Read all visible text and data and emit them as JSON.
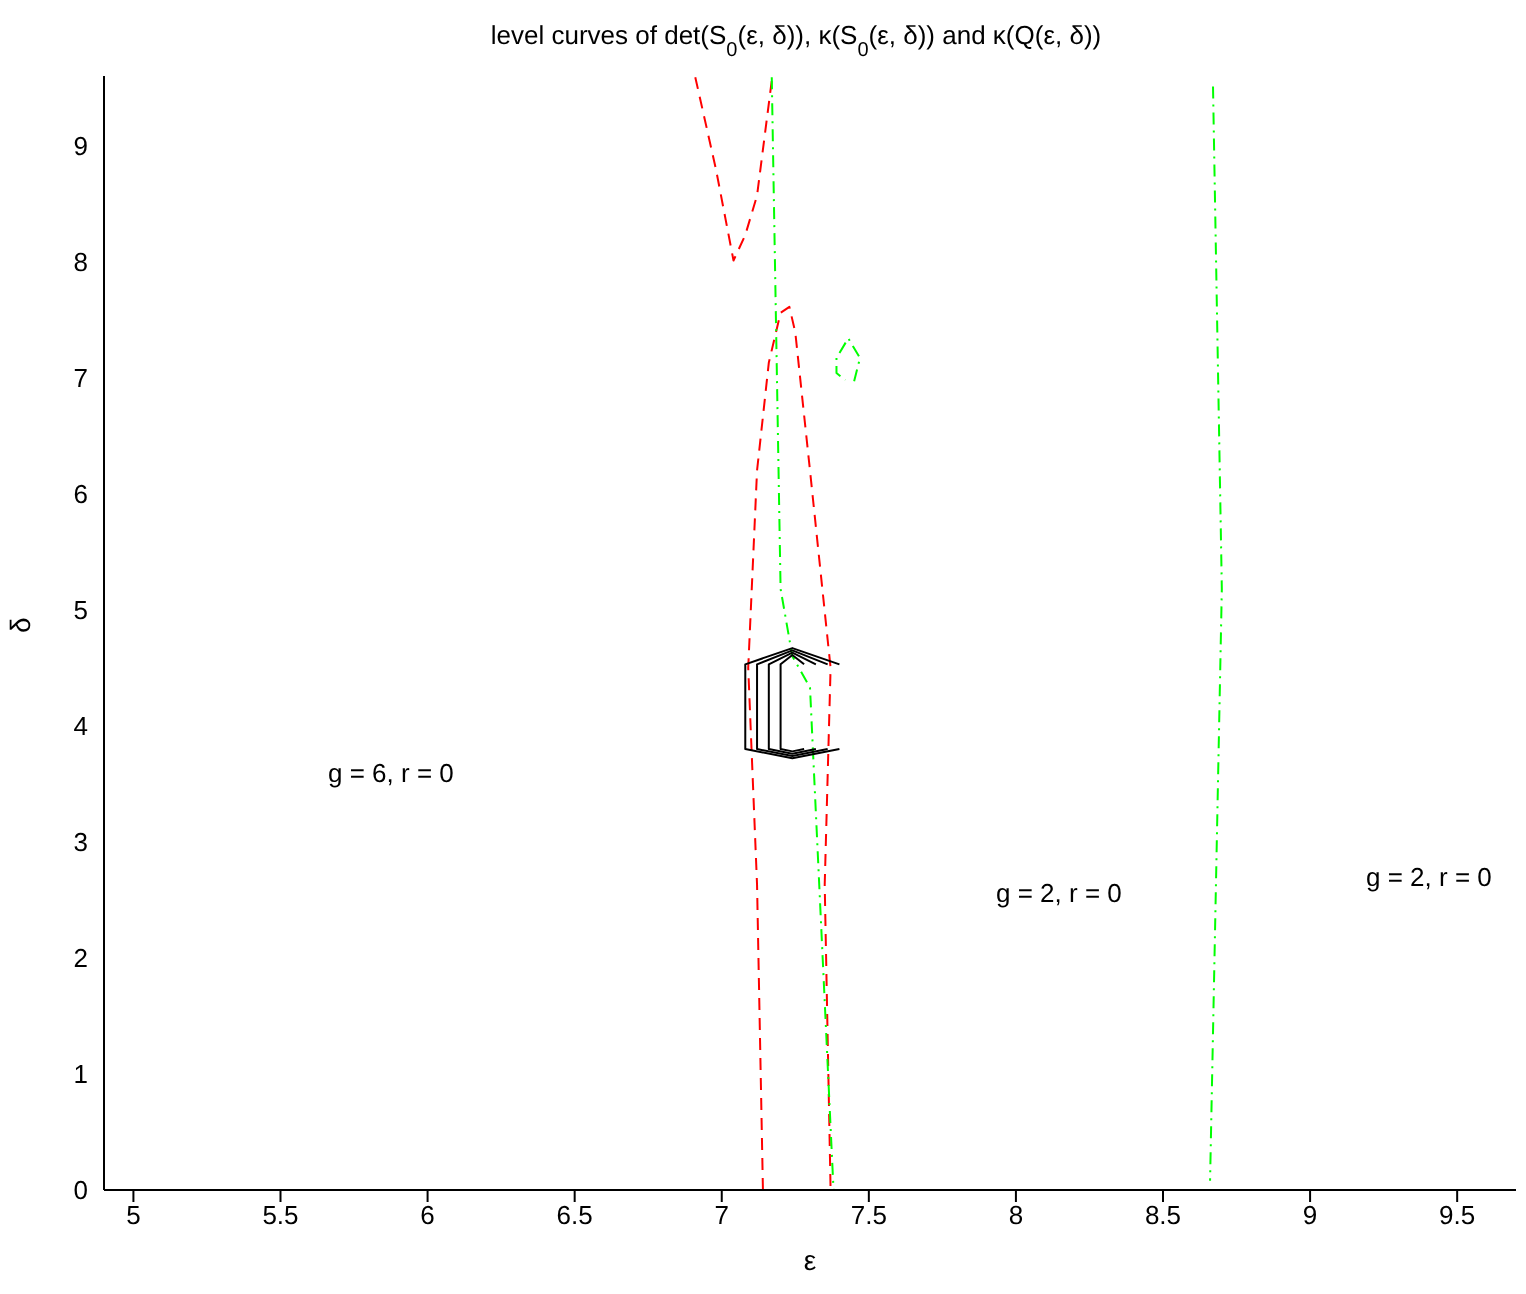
{
  "chart_data": {
    "type": "line",
    "title": "level curves of det(S$_{0}$(ε, δ)), κ(S$_{0}$(ε, δ))  and κ(Q(ε, δ))",
    "xlabel": "ε",
    "ylabel": "δ",
    "xlim": [
      4.9,
      9.7
    ],
    "ylim": [
      0,
      9.6
    ],
    "xticks": [
      5,
      5.5,
      6,
      6.5,
      7,
      7.5,
      8,
      8.5,
      9,
      9.5
    ],
    "yticks": [
      0,
      1,
      2,
      3,
      4,
      5,
      6,
      7,
      8,
      9
    ],
    "grid": false,
    "legend": false,
    "marker": "none",
    "series": [
      {
        "color": "#ff0000",
        "line_style": "dashed",
        "x": [
          6.91,
          6.98,
          7.04,
          7.08,
          7.12,
          7.17
        ],
        "values": [
          9.59,
          8.8,
          8.01,
          8.23,
          8.57,
          9.56
        ]
      },
      {
        "color": "#ff0000",
        "line_style": "dashed",
        "x": [
          7.14,
          7.12,
          7.09,
          7.12,
          7.16,
          7.2,
          7.23,
          7.25,
          7.3,
          7.37,
          7.35,
          7.37
        ],
        "values": [
          0,
          2.63,
          4.5,
          6.2,
          7.13,
          7.56,
          7.61,
          7.39,
          6.2,
          4.5,
          2.63,
          0
        ]
      },
      {
        "color": "#00ff00",
        "line_style": "dashdot",
        "x": [
          7.17,
          7.2,
          7.24,
          7.3,
          7.38
        ],
        "values": [
          9.59,
          5.18,
          4.6,
          4.33,
          0
        ]
      },
      {
        "color": "#00ff00",
        "line_style": "dashdot",
        "x": [
          8.67,
          8.7,
          8.66
        ],
        "values": [
          9.51,
          5.18,
          0.08
        ]
      },
      {
        "color": "#00ff00",
        "line_style": "dashdot",
        "x": [
          7.45,
          7.47,
          7.43,
          7.39,
          7.39,
          7.42
        ],
        "values": [
          6.97,
          7.17,
          7.34,
          7.17,
          7.04,
          6.98
        ]
      },
      {
        "color": "#000000",
        "line_style": "solid",
        "x": [
          7.4,
          7.24,
          7.08,
          7.08,
          7.24,
          7.4
        ],
        "values": [
          4.53,
          4.67,
          4.53,
          3.8,
          3.72,
          3.8
        ]
      },
      {
        "color": "#000000",
        "line_style": "solid",
        "x": [
          7.36,
          7.24,
          7.12,
          7.12,
          7.24,
          7.36
        ],
        "values": [
          4.53,
          4.65,
          4.53,
          3.8,
          3.74,
          3.8
        ]
      },
      {
        "color": "#000000",
        "line_style": "solid",
        "x": [
          7.32,
          7.24,
          7.16,
          7.16,
          7.24,
          7.32
        ],
        "values": [
          4.53,
          4.63,
          4.53,
          3.8,
          3.76,
          3.8
        ]
      },
      {
        "color": "#000000",
        "line_style": "solid",
        "x": [
          7.28,
          7.24,
          7.2,
          7.2,
          7.24,
          7.28
        ],
        "values": [
          4.53,
          4.61,
          4.53,
          3.8,
          3.78,
          3.8
        ]
      }
    ],
    "annotations": [
      "g = 6, r = 0",
      "g = 2, r = 0",
      "g = 2, r = 0"
    ]
  }
}
